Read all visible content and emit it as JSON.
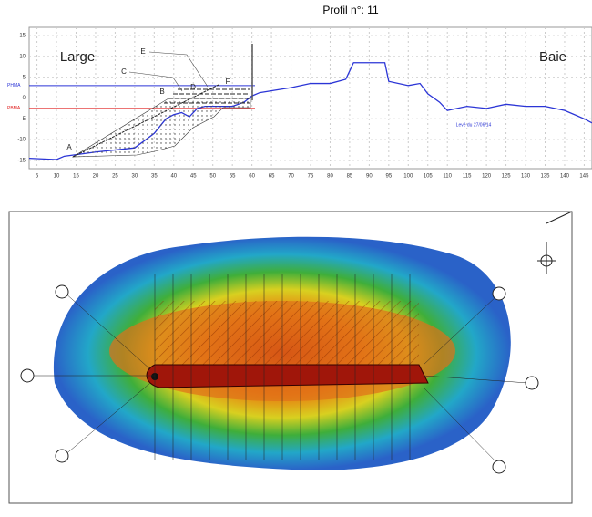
{
  "chart_data": {
    "type": "line",
    "title": "Profil n°: 11",
    "x": [
      3,
      10,
      12,
      20,
      30,
      35,
      38,
      40,
      42,
      44,
      46,
      48,
      52,
      55,
      58,
      60,
      62,
      70,
      75,
      80,
      84,
      86,
      88,
      94,
      95,
      100,
      103,
      105,
      108,
      110,
      115,
      120,
      125,
      130,
      135,
      140,
      145,
      147
    ],
    "series": [
      {
        "color": "#2b35d6",
        "values": [
          -14.5,
          -14.8,
          -14,
          -13,
          -12,
          -8.5,
          -5,
          -4,
          -3.5,
          -4.5,
          -2.5,
          -2,
          -2,
          -2,
          -1,
          0.5,
          1.3,
          2.5,
          3.5,
          3.5,
          4.5,
          8.5,
          8.5,
          8.5,
          4,
          3,
          3.5,
          1,
          -1,
          -3,
          -2,
          -2.5,
          -1.5,
          -2,
          -2,
          -3,
          -5,
          -6
        ]
      }
    ],
    "xlim": [
      3,
      147
    ],
    "ylim": [
      -17,
      17
    ],
    "xticks": [
      5,
      10,
      15,
      20,
      25,
      30,
      35,
      40,
      45,
      50,
      55,
      60,
      65,
      70,
      75,
      80,
      85,
      90,
      95,
      100,
      105,
      110,
      115,
      120,
      125,
      130,
      135,
      140,
      145
    ],
    "yticks": [
      -15,
      -10,
      -5,
      0,
      5,
      10,
      15
    ],
    "grid": true,
    "reference_lines": [
      {
        "name": "PHMA",
        "value": 3,
        "color": "#2b35d6"
      },
      {
        "name": "PBMA",
        "value": -2.5,
        "color": "#e02020"
      }
    ],
    "annotations": [
      "Large",
      "Baie",
      "Levé du 27/06/14",
      "A",
      "B",
      "C",
      "D",
      "E",
      "F"
    ]
  }
}
